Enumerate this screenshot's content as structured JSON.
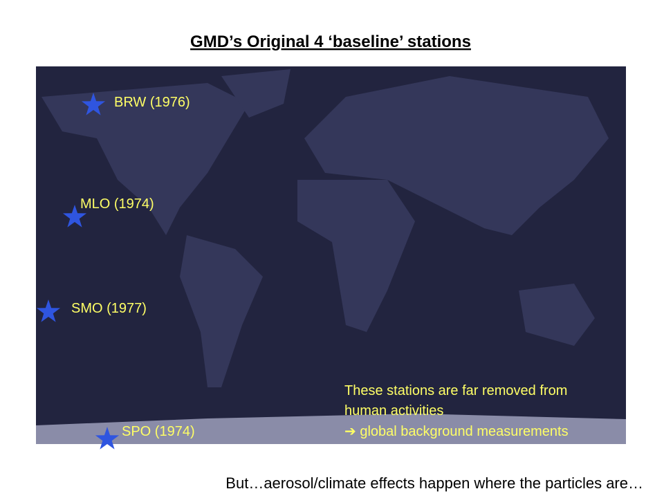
{
  "header": {
    "title": "GMD’s Original 4 ‘baseline’ stations"
  },
  "stations": [
    {
      "label": "BRW (1976)"
    },
    {
      "label": "MLO (1974)"
    },
    {
      "label": "SMO (1977)"
    },
    {
      "label": "SPO (1974)"
    }
  ],
  "note": {
    "lines": [
      "These stations are far removed from",
      "human activities",
      "➔ global background measurements"
    ]
  },
  "footer": {
    "text": "But…aerosol/climate effects happen where the particles are…"
  }
}
